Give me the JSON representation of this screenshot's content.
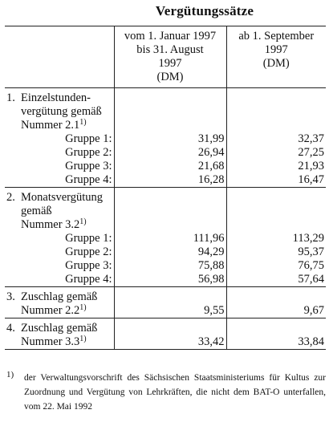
{
  "title": "Vergütungssätze",
  "columns": {
    "col2": [
      "vom 1. Januar 1997",
      "bis 31. August",
      "1997",
      "(DM)"
    ],
    "col3": [
      "ab 1. September",
      "1997",
      "(DM)"
    ]
  },
  "sections": [
    {
      "number": "1.",
      "label_lines": [
        "Einzelstunden-",
        "vergütung gemäß",
        "Nummer 2.1"
      ],
      "footnote_mark": "1)",
      "rows": [
        {
          "label": "Gruppe 1:",
          "v1": "31,99",
          "v2": "32,37"
        },
        {
          "label": "Gruppe 2:",
          "v1": "26,94",
          "v2": "27,25"
        },
        {
          "label": "Gruppe 3:",
          "v1": "21,68",
          "v2": "21,93"
        },
        {
          "label": "Gruppe 4:",
          "v1": "16,28",
          "v2": "16,47"
        }
      ]
    },
    {
      "number": "2.",
      "label_lines": [
        "Monatsvergütung",
        "gemäß",
        "Nummer 3.2"
      ],
      "footnote_mark": "1)",
      "rows": [
        {
          "label": "Gruppe 1:",
          "v1": "111,96",
          "v2": "113,29"
        },
        {
          "label": "Gruppe 2:",
          "v1": "94,29",
          "v2": "95,37"
        },
        {
          "label": "Gruppe 3:",
          "v1": "75,88",
          "v2": "76,75"
        },
        {
          "label": "Gruppe 4:",
          "v1": "56,98",
          "v2": "57,64"
        }
      ]
    },
    {
      "number": "3.",
      "label_lines": [
        "Zuschlag gemäß",
        "Nummer 2.2"
      ],
      "footnote_mark": "1)",
      "v1": "9,55",
      "v2": "9,67"
    },
    {
      "number": "4.",
      "label_lines": [
        "Zuschlag gemäß",
        "Nummer 3.3"
      ],
      "footnote_mark": "1)",
      "v1": "33,42",
      "v2": "33,84"
    }
  ],
  "footnote": {
    "mark": "1)",
    "text": "der Verwaltungsvorschrift des Sächsischen Staatsministeriums für Kultus zur Zuordnung und Vergütung von Lehrkräften, die nicht dem BAT-O unterfallen, vom 22. Mai 1992"
  }
}
